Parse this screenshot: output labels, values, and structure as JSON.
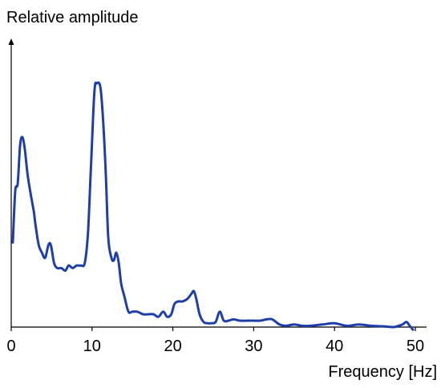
{
  "chart_data": {
    "type": "line",
    "title": "",
    "xlabel": "Frequency [Hz]",
    "ylabel": "Relative amplitude",
    "xlim": [
      0,
      50
    ],
    "ylim": [
      0,
      1
    ],
    "xticks": [
      0,
      10,
      20,
      30,
      40,
      50
    ],
    "yticks": [],
    "grid": false,
    "legend": "none",
    "line_color": "#1f3fa8",
    "series": [
      {
        "x": [
          0.2,
          0.5,
          0.8,
          1.1,
          1.4,
          1.7,
          2.0,
          2.4,
          2.8,
          3.0,
          3.4,
          3.8,
          4.2,
          4.6,
          4.9,
          5.3,
          5.7,
          6.2,
          6.7,
          7.1,
          7.6,
          8.1,
          8.6,
          9.1,
          9.5,
          9.9,
          10.3,
          10.6,
          11.0,
          11.3,
          11.7,
          12.0,
          12.4,
          12.7,
          13.0,
          13.3,
          13.6,
          14.0,
          14.5,
          15.0,
          15.6,
          16.3,
          17.0,
          17.6,
          18.2,
          18.8,
          19.3,
          19.8,
          20.2,
          20.7,
          21.2,
          21.8,
          22.3,
          22.6,
          22.9,
          23.3,
          23.8,
          24.3,
          24.8,
          25.3,
          25.8,
          26.3,
          26.9,
          27.5,
          28.3,
          29.2,
          30.0,
          30.8,
          31.6,
          32.3,
          33.2,
          34.0,
          35.0,
          36.0,
          37.0,
          38.5,
          40.0,
          41.5,
          43.0,
          44.5,
          46.0,
          47.3,
          47.9,
          48.4,
          48.9,
          49.3,
          49.7
        ],
        "y": [
          0.33,
          0.53,
          0.56,
          0.71,
          0.74,
          0.69,
          0.6,
          0.52,
          0.45,
          0.4,
          0.32,
          0.29,
          0.27,
          0.32,
          0.32,
          0.25,
          0.23,
          0.23,
          0.22,
          0.24,
          0.23,
          0.24,
          0.24,
          0.25,
          0.37,
          0.65,
          0.92,
          0.95,
          0.94,
          0.84,
          0.6,
          0.35,
          0.27,
          0.26,
          0.29,
          0.25,
          0.17,
          0.12,
          0.06,
          0.06,
          0.06,
          0.05,
          0.05,
          0.05,
          0.04,
          0.06,
          0.04,
          0.05,
          0.09,
          0.1,
          0.1,
          0.11,
          0.13,
          0.14,
          0.11,
          0.05,
          0.02,
          0.015,
          0.015,
          0.02,
          0.06,
          0.025,
          0.025,
          0.03,
          0.025,
          0.025,
          0.025,
          0.025,
          0.03,
          0.03,
          0.01,
          0.005,
          0.01,
          0.005,
          0.005,
          0.01,
          0.015,
          0.005,
          0.01,
          0.005,
          0.003,
          0.0,
          0.005,
          0.01,
          0.02,
          0.005,
          -0.01
        ]
      }
    ]
  }
}
